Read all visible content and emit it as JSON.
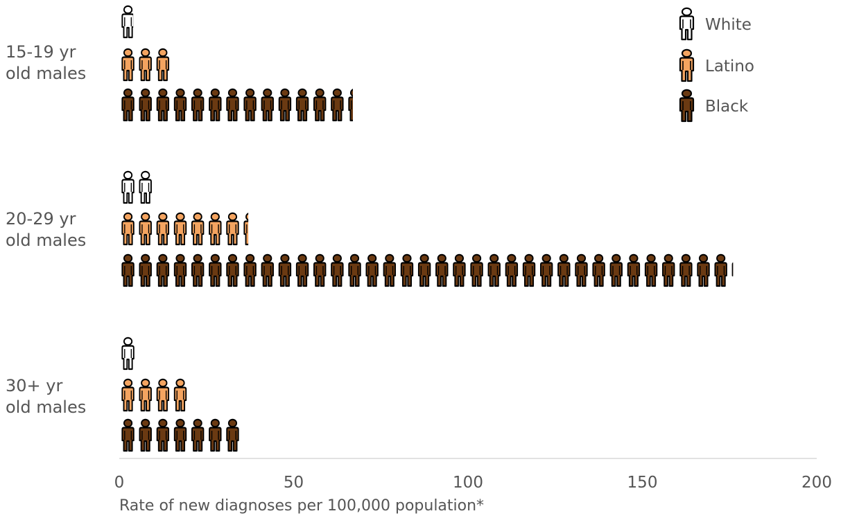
{
  "chart_data": {
    "type": "bar",
    "title": "",
    "xlabel": "Rate of new diagnoses per 100,000 population*",
    "ylabel": "",
    "xlim": [
      0,
      200
    ],
    "xticks": [
      0,
      50,
      100,
      150,
      200
    ],
    "categories": [
      "15-19 yr\nold males",
      "20-29 yr\nold males",
      "30+ yr\nold males"
    ],
    "series": [
      {
        "name": "White",
        "values": [
          4,
          9.5,
          5
        ]
      },
      {
        "name": "Latino",
        "values": [
          15,
          37,
          19.5
        ]
      },
      {
        "name": "Black",
        "values": [
          67,
          176,
          35.5
        ]
      }
    ],
    "colors": {
      "White": "#ffffff",
      "Latino": "#f4a460",
      "Black": "#6b3a12"
    },
    "icon": "person-icon",
    "unit_per_icon": 5,
    "legend_position": "top-right",
    "grid": false
  }
}
